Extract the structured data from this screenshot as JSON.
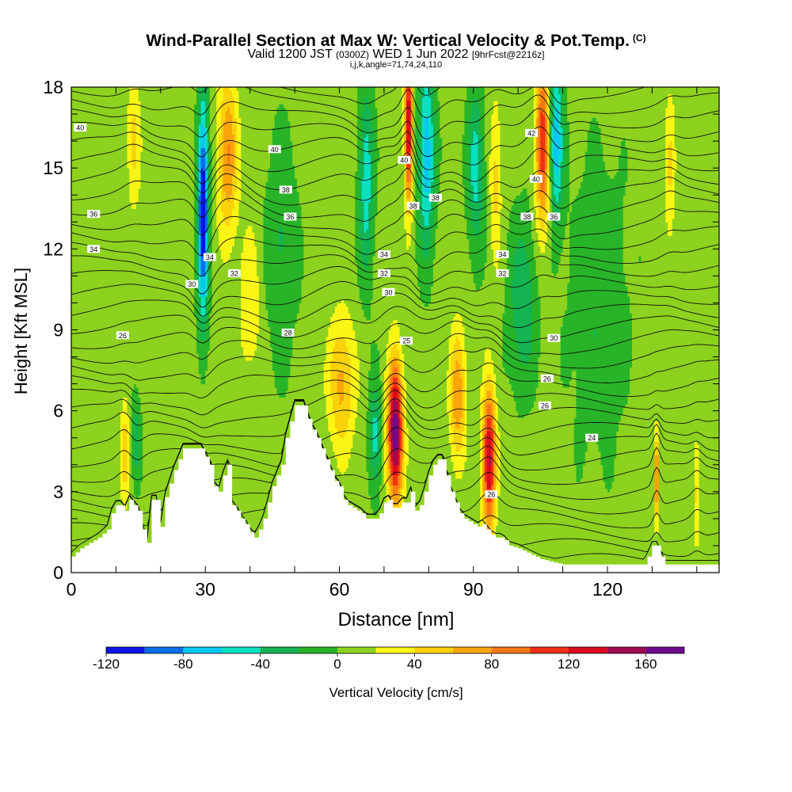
{
  "title": {
    "main": "Wind-Parallel Section at Max W: Vertical Velocity & Pot.Temp.",
    "mark": "(C)",
    "valid_a": "Valid 1200 JST",
    "valid_b": "(0300Z)",
    "valid_c": "WED 1 Jun 2022",
    "valid_d": "[9hrFcst@2216z]",
    "params": "i,j,k,angle=71,74,24,110"
  },
  "chart_data": {
    "type": "heatmap",
    "xlabel": "Distance [nm]",
    "ylabel": "Height [Kft MSL]",
    "xlim": [
      0,
      145
    ],
    "ylim": [
      0,
      18
    ],
    "x_ticks": [
      0,
      30,
      60,
      90,
      120
    ],
    "y_ticks": [
      0,
      3,
      6,
      9,
      12,
      15,
      18
    ],
    "colorbar": {
      "label": "Vertical Velocity [cm/s]",
      "min": -120,
      "max": 180,
      "tick_values": [
        -120,
        -80,
        -40,
        0,
        40,
        80,
        120,
        160
      ],
      "tick_labels": [
        "-120",
        "-80",
        "-40",
        "0",
        "40",
        "80",
        "120",
        "160"
      ],
      "colors": [
        "#0a14e8",
        "#0a6ef0",
        "#0ac8f0",
        "#0ae0c0",
        "#14b452",
        "#28b428",
        "#8cd21e",
        "#faf514",
        "#fad20a",
        "#faa50a",
        "#fa7814",
        "#f03214",
        "#dc0a1e",
        "#a00a50",
        "#6e0a8c"
      ]
    },
    "terrain": [
      [
        0,
        0.6
      ],
      [
        2,
        0.9
      ],
      [
        4,
        1.1
      ],
      [
        6,
        1.3
      ],
      [
        8,
        1.6
      ],
      [
        9,
        2.2
      ],
      [
        10,
        2.5
      ],
      [
        11,
        2.5
      ],
      [
        12,
        2.3
      ],
      [
        13,
        2.7
      ],
      [
        14,
        2.5
      ],
      [
        15,
        2.3
      ],
      [
        16,
        1.6
      ],
      [
        17,
        1.1
      ],
      [
        18,
        2.7
      ],
      [
        19,
        2.7
      ],
      [
        20,
        1.7
      ],
      [
        21,
        2.8
      ],
      [
        22,
        3.3
      ],
      [
        23,
        3.8
      ],
      [
        24,
        4.2
      ],
      [
        25,
        4.6
      ],
      [
        27,
        4.6
      ],
      [
        29,
        4.6
      ],
      [
        30,
        4.3
      ],
      [
        31,
        4.0
      ],
      [
        32,
        3.2
      ],
      [
        33,
        3.0
      ],
      [
        34,
        3.6
      ],
      [
        35,
        4.0
      ],
      [
        36,
        2.5
      ],
      [
        37,
        2.3
      ],
      [
        38,
        2.0
      ],
      [
        39,
        1.8
      ],
      [
        40,
        1.5
      ],
      [
        41,
        1.3
      ],
      [
        42,
        1.6
      ],
      [
        43,
        2.0
      ],
      [
        44,
        2.6
      ],
      [
        45,
        3.2
      ],
      [
        46,
        3.6
      ],
      [
        47,
        4.0
      ],
      [
        48,
        5.0
      ],
      [
        49,
        5.6
      ],
      [
        50,
        6.2
      ],
      [
        52,
        6.2
      ],
      [
        53,
        5.7
      ],
      [
        54,
        5.3
      ],
      [
        55,
        5.0
      ],
      [
        56,
        4.6
      ],
      [
        57,
        4.2
      ],
      [
        58,
        3.8
      ],
      [
        59,
        3.4
      ],
      [
        60,
        3.2
      ],
      [
        61,
        2.7
      ],
      [
        62,
        2.5
      ],
      [
        63,
        2.4
      ],
      [
        64,
        2.3
      ],
      [
        65,
        2.2
      ],
      [
        66,
        2.0
      ],
      [
        68,
        2.0
      ],
      [
        69,
        2.2
      ],
      [
        70,
        2.6
      ],
      [
        71,
        2.7
      ],
      [
        72,
        2.4
      ],
      [
        73,
        2.4
      ],
      [
        74,
        2.6
      ],
      [
        75,
        2.6
      ],
      [
        76,
        3.0
      ],
      [
        77,
        2.3
      ],
      [
        78,
        2.5
      ],
      [
        79,
        3.0
      ],
      [
        80,
        3.6
      ],
      [
        81,
        4.0
      ],
      [
        82,
        4.2
      ],
      [
        83,
        4.2
      ],
      [
        84,
        3.6
      ],
      [
        85,
        3.0
      ],
      [
        86,
        2.6
      ],
      [
        87,
        2.2
      ],
      [
        88,
        2.0
      ],
      [
        89,
        1.9
      ],
      [
        90,
        1.8
      ],
      [
        91,
        1.7
      ],
      [
        92,
        1.8
      ],
      [
        93,
        1.6
      ],
      [
        94,
        1.4
      ],
      [
        95,
        1.3
      ],
      [
        96,
        1.3
      ],
      [
        97,
        1.2
      ],
      [
        98,
        1.0
      ],
      [
        100,
        0.9
      ],
      [
        105,
        0.5
      ],
      [
        110,
        0.3
      ],
      [
        125,
        0.3
      ],
      [
        128,
        0.3
      ],
      [
        129,
        0.6
      ],
      [
        130,
        1.0
      ],
      [
        131,
        1.0
      ],
      [
        132,
        0.6
      ],
      [
        133,
        0.3
      ],
      [
        145,
        0.3
      ]
    ],
    "updrafts": [
      {
        "x": 72.5,
        "z": 5.2,
        "w": 170,
        "sx": 1.7,
        "sz": 2.6
      },
      {
        "x": 93.5,
        "z": 4.2,
        "w": 140,
        "sx": 1.5,
        "sz": 2.6
      },
      {
        "x": 75.5,
        "z": 16.5,
        "w": 140,
        "sx": 0.9,
        "sz": 2.8
      },
      {
        "x": 105.5,
        "z": 16.0,
        "w": 110,
        "sx": 1.6,
        "sz": 3.2
      },
      {
        "x": 35,
        "z": 15.5,
        "w": 75,
        "sx": 2.2,
        "sz": 3.0
      },
      {
        "x": 60.5,
        "z": 7.0,
        "w": 60,
        "sx": 3.0,
        "sz": 2.5
      },
      {
        "x": 86.5,
        "z": 6.5,
        "w": 70,
        "sx": 1.8,
        "sz": 2.5
      },
      {
        "x": 131,
        "z": 3.5,
        "w": 90,
        "sx": 0.5,
        "sz": 1.6
      },
      {
        "x": 12,
        "z": 4.5,
        "w": 45,
        "sx": 1.0,
        "sz": 2.0
      },
      {
        "x": 14,
        "z": 16.0,
        "w": 40,
        "sx": 1.5,
        "sz": 2.5
      },
      {
        "x": 40,
        "z": 10.0,
        "w": 30,
        "sx": 2.5,
        "sz": 3.0
      },
      {
        "x": 134,
        "z": 15.0,
        "w": 35,
        "sx": 1.2,
        "sz": 3.0
      },
      {
        "x": 140,
        "z": 3.0,
        "w": 40,
        "sx": 0.7,
        "sz": 2.0
      },
      {
        "x": 95,
        "z": 14.5,
        "w": 40,
        "sx": 1.3,
        "sz": 3.0
      }
    ],
    "downdrafts": [
      {
        "x": 29.5,
        "z": 13.5,
        "w": -130,
        "sx": 1.2,
        "sz": 4.0
      },
      {
        "x": 79.5,
        "z": 15.5,
        "w": -80,
        "sx": 1.8,
        "sz": 3.5
      },
      {
        "x": 68,
        "z": 5.0,
        "w": -55,
        "sx": 1.3,
        "sz": 2.0
      },
      {
        "x": 108.5,
        "z": 16.0,
        "w": -80,
        "sx": 1.6,
        "sz": 3.0
      },
      {
        "x": 66,
        "z": 14.5,
        "w": -60,
        "sx": 1.6,
        "sz": 3.5
      },
      {
        "x": 90.5,
        "z": 15.0,
        "w": -55,
        "sx": 1.8,
        "sz": 3.0
      },
      {
        "x": 101,
        "z": 10.0,
        "w": -45,
        "sx": 3.0,
        "sz": 3.0
      },
      {
        "x": 14.5,
        "z": 5.0,
        "w": -40,
        "sx": 1.0,
        "sz": 1.5
      },
      {
        "x": 47,
        "z": 12.0,
        "w": -30,
        "sx": 3.5,
        "sz": 4.0
      },
      {
        "x": 118,
        "z": 10.0,
        "w": -25,
        "sx": 6.0,
        "sz": 5.0
      }
    ],
    "contour_levels": [
      24,
      26,
      28,
      30,
      32,
      34,
      36,
      38,
      40,
      42
    ],
    "contour_labels": [
      {
        "text": "40",
        "x": 2,
        "z": 16.5
      },
      {
        "text": "36",
        "x": 5,
        "z": 13.3
      },
      {
        "text": "34",
        "x": 5,
        "z": 12.0
      },
      {
        "text": "26",
        "x": 11.5,
        "z": 8.8
      },
      {
        "text": "30",
        "x": 27,
        "z": 10.7
      },
      {
        "text": "34",
        "x": 31,
        "z": 11.7
      },
      {
        "text": "32",
        "x": 36.5,
        "z": 11.1
      },
      {
        "text": "40",
        "x": 45.5,
        "z": 15.7
      },
      {
        "text": "38",
        "x": 48,
        "z": 14.2
      },
      {
        "text": "36",
        "x": 49,
        "z": 13.2
      },
      {
        "text": "28",
        "x": 48.5,
        "z": 8.9
      },
      {
        "text": "34",
        "x": 70,
        "z": 11.8
      },
      {
        "text": "32",
        "x": 70,
        "z": 11.1
      },
      {
        "text": "30",
        "x": 71,
        "z": 10.4
      },
      {
        "text": "40",
        "x": 74.5,
        "z": 15.3
      },
      {
        "text": "38",
        "x": 76.5,
        "z": 13.6
      },
      {
        "text": "38",
        "x": 81.5,
        "z": 13.9
      },
      {
        "text": "25",
        "x": 75,
        "z": 8.6
      },
      {
        "text": "34",
        "x": 96.5,
        "z": 11.8
      },
      {
        "text": "32",
        "x": 96.5,
        "z": 11.1
      },
      {
        "text": "42",
        "x": 103,
        "z": 16.3
      },
      {
        "text": "40",
        "x": 104,
        "z": 14.6
      },
      {
        "text": "38",
        "x": 102,
        "z": 13.2
      },
      {
        "text": "36",
        "x": 108,
        "z": 13.2
      },
      {
        "text": "30",
        "x": 108,
        "z": 8.7
      },
      {
        "text": "26",
        "x": 106.5,
        "z": 7.2
      },
      {
        "text": "26",
        "x": 106,
        "z": 6.2
      },
      {
        "text": "24",
        "x": 116.5,
        "z": 5.0
      },
      {
        "text": "26",
        "x": 94,
        "z": 2.9
      }
    ]
  }
}
